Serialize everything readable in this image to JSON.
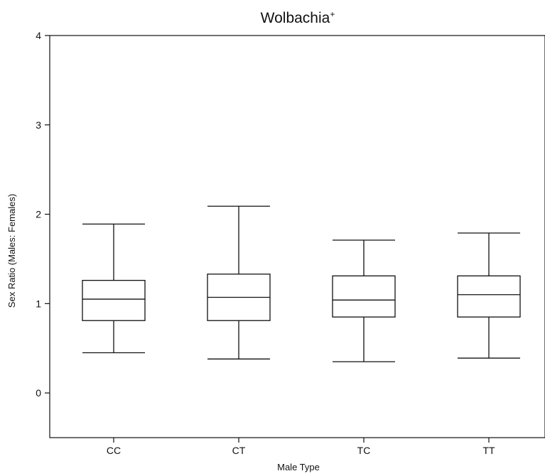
{
  "chart_data": {
    "type": "boxplot",
    "title": "Wolbachia",
    "title_superscript": "+",
    "xlabel": "Male Type",
    "ylabel": "Sex Ratio (Males: Females)",
    "ylim": [
      -0.5,
      4
    ],
    "yticks": [
      0,
      1,
      2,
      3,
      4
    ],
    "ytick_labels": [
      "0",
      "1",
      "2",
      "3",
      "4"
    ],
    "categories": [
      "CC",
      "CT",
      "TC",
      "TT"
    ],
    "boxes": [
      {
        "category": "CC",
        "min": 0.45,
        "q1": 0.81,
        "median": 1.05,
        "q3": 1.26,
        "max": 1.89
      },
      {
        "category": "CT",
        "min": 0.38,
        "q1": 0.81,
        "median": 1.07,
        "q3": 1.33,
        "max": 2.09
      },
      {
        "category": "TC",
        "min": 0.35,
        "q1": 0.85,
        "median": 1.04,
        "q3": 1.31,
        "max": 1.71
      },
      {
        "category": "TT",
        "min": 0.39,
        "q1": 0.85,
        "median": 1.1,
        "q3": 1.31,
        "max": 1.79
      }
    ],
    "grid": false,
    "colors": {
      "box_fill": "#ffffff",
      "stroke": "#111111"
    }
  }
}
